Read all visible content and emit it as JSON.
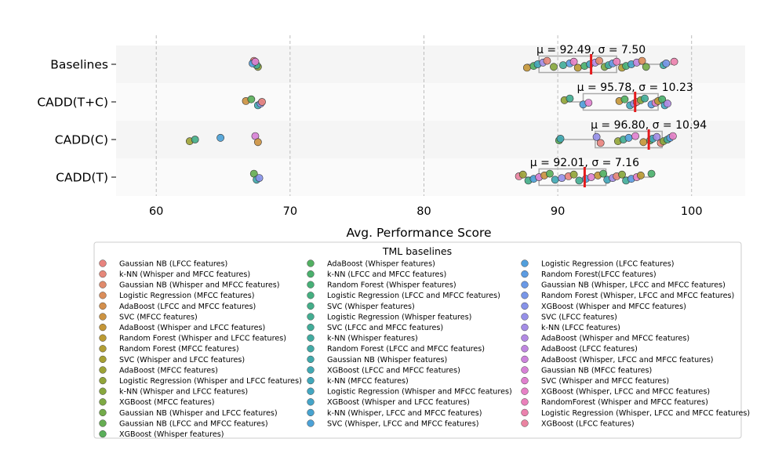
{
  "chart_data": {
    "type": "scatter",
    "xlabel": "Avg. Performance Score",
    "xlim": [
      57,
      104
    ],
    "x_ticks": [
      "60",
      "70",
      "80",
      "90",
      "100"
    ],
    "x_tick_values": [
      60,
      70,
      80,
      90,
      100
    ],
    "grid": "vertical dashed",
    "categories": [
      "Baselines",
      "CADD(T+C)",
      "CADD(C)",
      "CADD(T)"
    ],
    "stats": [
      {
        "category": "Baselines",
        "label": "μ = 92.49, σ = 7.50",
        "mean": 92.49,
        "q1": 88.6,
        "q3": 94.4,
        "whisker_low": 87.7,
        "whisker_high": 98.7
      },
      {
        "category": "CADD(T+C)",
        "label": "μ = 95.78, σ = 10.23",
        "mean": 95.78,
        "q1": 91.9,
        "q3": 97.5,
        "whisker_low": 90.5,
        "whisker_high": 98.2
      },
      {
        "category": "CADD(C)",
        "label": "μ = 96.80, σ = 10.94",
        "mean": 96.8,
        "q1": 92.8,
        "q3": 97.8,
        "whisker_low": 90.1,
        "whisker_high": 98.6
      },
      {
        "category": "CADD(T)",
        "label": "μ = 92.01, σ = 7.16",
        "mean": 92.01,
        "q1": 88.6,
        "q3": 93.6,
        "whisker_low": 87.1,
        "whisker_high": 97.0
      }
    ],
    "points": [
      {
        "category": "Baselines",
        "values": [
          67.3,
          67.6,
          67.5,
          67.2,
          67.4,
          87.7,
          88.2,
          88.5,
          88.9,
          89.2,
          89.7,
          90.4,
          90.9,
          91.2,
          91.5,
          92.0,
          92.4,
          92.8,
          93.1,
          93.5,
          93.8,
          94.1,
          94.4,
          94.8,
          95.1,
          95.5,
          95.9,
          96.3,
          96.6,
          97.9,
          98.1,
          98.7
        ]
      },
      {
        "category": "CADD(T+C)",
        "values": [
          66.7,
          67.1,
          67.6,
          67.8,
          67.9,
          90.5,
          90.9,
          91.9,
          92.3,
          94.6,
          95.0,
          95.4,
          95.7,
          95.9,
          96.2,
          96.5,
          97.0,
          97.3,
          97.5,
          97.8,
          98.0,
          98.2
        ]
      },
      {
        "category": "CADD(C)",
        "values": [
          62.5,
          62.9,
          64.8,
          67.4,
          67.6,
          90.1,
          90.2,
          92.9,
          93.2,
          94.5,
          94.9,
          95.3,
          95.8,
          96.4,
          96.9,
          97.1,
          97.4,
          97.7,
          97.9,
          98.2,
          98.4,
          98.6
        ]
      },
      {
        "category": "CADD(T)",
        "values": [
          67.3,
          67.5,
          67.7,
          87.1,
          87.4,
          87.8,
          88.2,
          88.6,
          89.0,
          89.4,
          89.8,
          90.3,
          90.8,
          91.2,
          91.6,
          92.1,
          92.5,
          93.0,
          93.4,
          93.7,
          94.1,
          94.4,
          94.8,
          95.1,
          95.5,
          95.9,
          96.2,
          97.0
        ]
      }
    ],
    "legend_title": "TML baselines",
    "legend_position": "bottom",
    "legend": [
      {
        "name": "Gaussian NB (LFCC features)",
        "color": "#e8837e"
      },
      {
        "name": "k-NN (Whisper and MFCC features)",
        "color": "#e6877a"
      },
      {
        "name": "Gaussian NB (Whisper and MFCC features)",
        "color": "#e08a6c"
      },
      {
        "name": "Logistic Regression (MFCC features)",
        "color": "#da8d5a"
      },
      {
        "name": "AdaBoost (LFCC and MFCC features)",
        "color": "#d38f4c"
      },
      {
        "name": "SVC (MFCC features)",
        "color": "#cc9342"
      },
      {
        "name": "AdaBoost (Whisper and LFCC features)",
        "color": "#c49638"
      },
      {
        "name": "Random Forest (Whisper and LFCC features)",
        "color": "#bb9a34"
      },
      {
        "name": "Random Forest (MFCC features)",
        "color": "#b19d35"
      },
      {
        "name": "SVC (Whisper and LFCC features)",
        "color": "#a7a035"
      },
      {
        "name": "AdaBoost (MFCC features)",
        "color": "#9da337"
      },
      {
        "name": "Logistic Regression (Whisper and LFCC features)",
        "color": "#92a53a"
      },
      {
        "name": "k-NN (Whisper and LFCC features)",
        "color": "#88a73e"
      },
      {
        "name": "XGBoost (MFCC features)",
        "color": "#7ea944"
      },
      {
        "name": "Gaussian NB (Whisper and LFCC features)",
        "color": "#73ab4a"
      },
      {
        "name": "Gaussian NB (LFCC and MFCC features)",
        "color": "#66ad52"
      },
      {
        "name": "XGBoost (Whisper features)",
        "color": "#5aaf5a"
      },
      {
        "name": "AdaBoost (Whisper features)",
        "color": "#52b062"
      },
      {
        "name": "k-NN (LFCC and MFCC features)",
        "color": "#4bb06d"
      },
      {
        "name": "Random Forest (Whisper features)",
        "color": "#47b077"
      },
      {
        "name": "Logistic Regression (LFCC and MFCC features)",
        "color": "#45af80"
      },
      {
        "name": "SVC (Whisper features)",
        "color": "#44ae89"
      },
      {
        "name": "Logistic Regression (Whisper features)",
        "color": "#43ad91"
      },
      {
        "name": "SVC (LFCC and MFCC features)",
        "color": "#42ac99"
      },
      {
        "name": "k-NN (Whisper features)",
        "color": "#41aba0"
      },
      {
        "name": "Random Forest (LFCC and MFCC features)",
        "color": "#41aaa6"
      },
      {
        "name": "Gaussian NB (Whisper features)",
        "color": "#41a9ac"
      },
      {
        "name": "XGBoost (LFCC and MFCC features)",
        "color": "#41a8b3"
      },
      {
        "name": "k-NN (MFCC features)",
        "color": "#42a7ba"
      },
      {
        "name": "Logistic Regression (Whisper and MFCC features)",
        "color": "#43a6c1"
      },
      {
        "name": "XGBoost (Whisper and LFCC features)",
        "color": "#45a4c8"
      },
      {
        "name": "k-NN (Whisper, LFCC and MFCC features)",
        "color": "#48a3cf"
      },
      {
        "name": "SVC (Whisper, LFCC and MFCC features)",
        "color": "#4ca1d6"
      },
      {
        "name": "Logistic Regression (LFCC features)",
        "color": "#529fdc"
      },
      {
        "name": "Random Forest(LFCC features)",
        "color": "#5d9ce2"
      },
      {
        "name": "Gaussian NB (Whisper, LFCC and MFCC features)",
        "color": "#6a99e6"
      },
      {
        "name": "Random Forest (Whisper, LFCC and MFCC features)",
        "color": "#7896e8"
      },
      {
        "name": "XGBoost (Whisper and MFCC features)",
        "color": "#8793e9"
      },
      {
        "name": "SVC (LFCC features)",
        "color": "#9690e8"
      },
      {
        "name": "k-NN (LFCC features)",
        "color": "#a48de6"
      },
      {
        "name": "AdaBoost (Whisper and MFCC features)",
        "color": "#b28ae4"
      },
      {
        "name": "AdaBoost (LFCC features)",
        "color": "#bf87e0"
      },
      {
        "name": "AdaBoost (Whisper, LFCC and MFCC features)",
        "color": "#cc84dc"
      },
      {
        "name": "Gaussian NB (MFCC features)",
        "color": "#d782d6"
      },
      {
        "name": "SVC (Whisper and MFCC features)",
        "color": "#e081cf"
      },
      {
        "name": "XGBoost (Whisper, LFCC and MFCC features)",
        "color": "#e681c6"
      },
      {
        "name": "RandomForest (Whisper and MFCC features)",
        "color": "#ea81bb"
      },
      {
        "name": "Logistic Regression (Whisper, LFCC and MFCC features)",
        "color": "#eb82ae"
      },
      {
        "name": "XGBoost (LFCC features)",
        "color": "#ea83a1"
      }
    ]
  }
}
